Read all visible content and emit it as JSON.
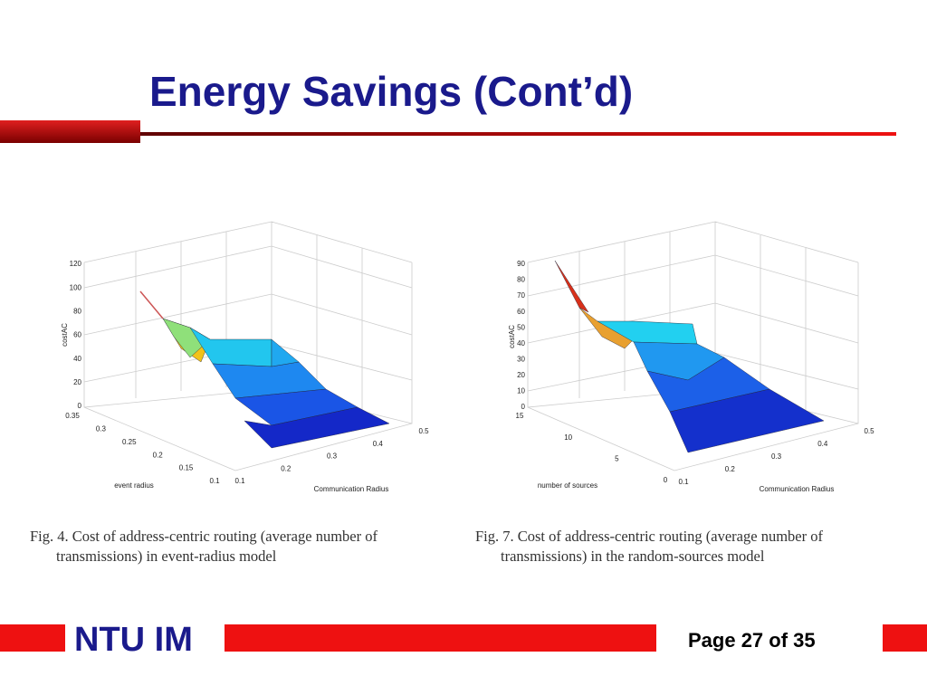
{
  "header": {
    "title": "Energy Savings (Cont’d)"
  },
  "figures": [
    {
      "z_label": "costAC",
      "z_ticks": [
        "120",
        "100",
        "80",
        "60",
        "40",
        "20",
        "0"
      ],
      "y_label": "event radius",
      "y_ticks": [
        "0.35",
        "0.3",
        "0.25",
        "0.2",
        "0.15",
        "0.1"
      ],
      "x_label": "Communication Radius",
      "x_ticks": [
        "0.1",
        "0.2",
        "0.3",
        "0.4",
        "0.5"
      ],
      "caption": [
        "Fig. 4.    Cost of address-centric routing (average number of",
        "transmissions) in event-radius model"
      ]
    },
    {
      "z_label": "costAC",
      "z_ticks": [
        "90",
        "80",
        "70",
        "60",
        "50",
        "40",
        "30",
        "20",
        "10",
        "0"
      ],
      "y_label": "number of sources",
      "y_ticks": [
        "15",
        "10",
        "5",
        "0"
      ],
      "x_label": "Communication Radius",
      "x_ticks": [
        "0.1",
        "0.2",
        "0.3",
        "0.4",
        "0.5"
      ],
      "caption": [
        "Fig. 7.    Cost of address-centric routing (average number of",
        "transmissions) in the random-sources model"
      ]
    }
  ],
  "footer": {
    "brand": "NTU IM",
    "page": "Page 27 of 35"
  }
}
